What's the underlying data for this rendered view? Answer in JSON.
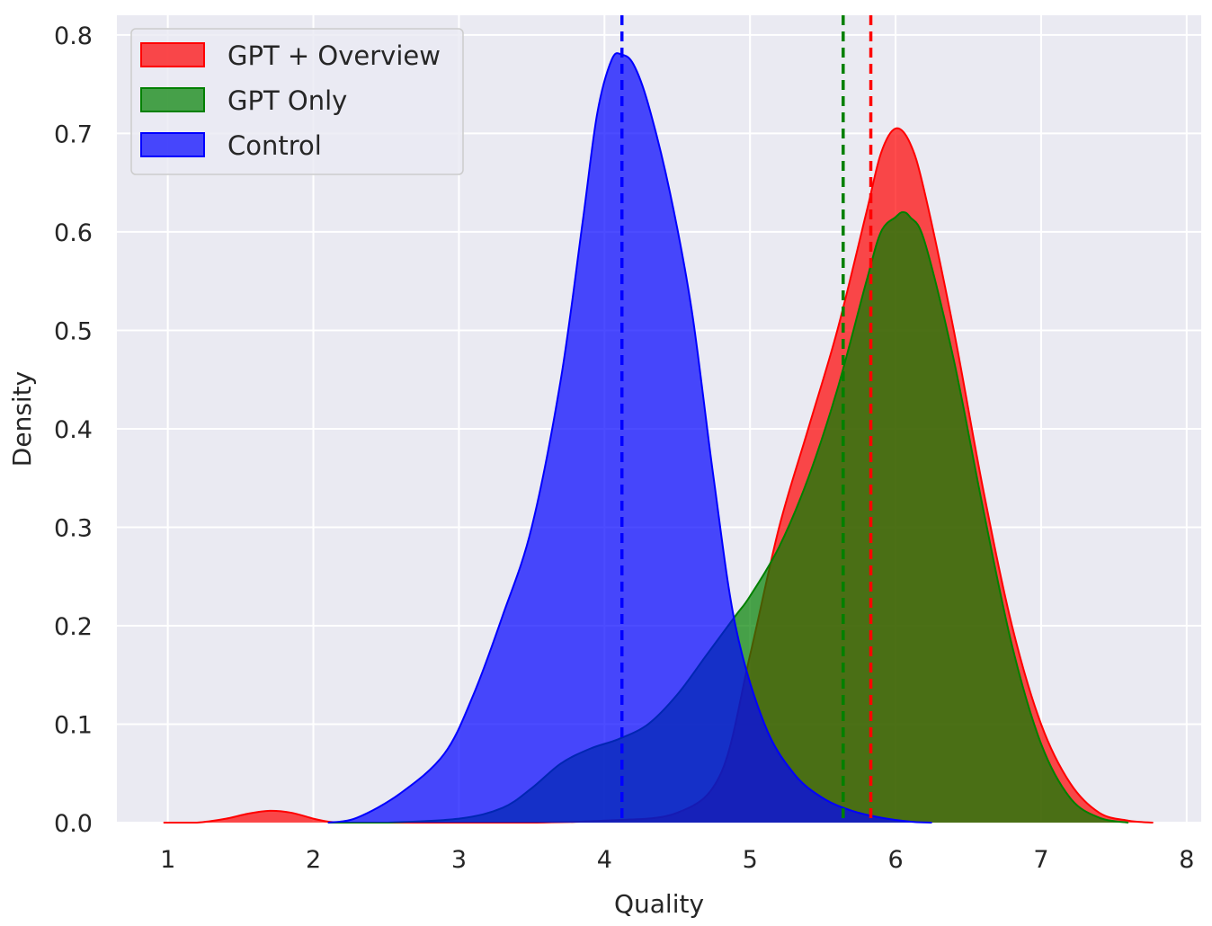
{
  "chart_data": {
    "type": "area",
    "xlabel": "Quality",
    "ylabel": "Density",
    "xlim": [
      0.65,
      8.1
    ],
    "ylim": [
      0,
      0.82
    ],
    "xticks": [
      1,
      2,
      3,
      4,
      5,
      6,
      7,
      8
    ],
    "yticks": [
      0.0,
      0.1,
      0.2,
      0.3,
      0.4,
      0.5,
      0.6,
      0.7,
      0.8
    ],
    "xtick_labels": [
      "1",
      "2",
      "3",
      "4",
      "5",
      "6",
      "7",
      "8"
    ],
    "ytick_labels": [
      "0.0",
      "0.1",
      "0.2",
      "0.3",
      "0.4",
      "0.5",
      "0.6",
      "0.7",
      "0.8"
    ],
    "grid": true,
    "legend_position": "top-left",
    "series": [
      {
        "name": "GPT + Overview",
        "color": "#ff0000",
        "mean": 5.83,
        "x": [
          0.97,
          1.2,
          1.4,
          1.55,
          1.7,
          1.85,
          2.0,
          2.1,
          2.2,
          2.5,
          3.0,
          3.5,
          4.0,
          4.5,
          4.8,
          5.0,
          5.2,
          5.4,
          5.6,
          5.8,
          5.9,
          6.0,
          6.1,
          6.2,
          6.4,
          6.6,
          6.8,
          7.0,
          7.2,
          7.4,
          7.6,
          7.77
        ],
        "y": [
          0.0,
          0.0,
          0.004,
          0.009,
          0.012,
          0.01,
          0.004,
          0.001,
          0.0,
          0.0,
          0.0,
          0.0,
          0.002,
          0.01,
          0.05,
          0.17,
          0.3,
          0.4,
          0.5,
          0.62,
          0.68,
          0.705,
          0.69,
          0.64,
          0.5,
          0.34,
          0.2,
          0.1,
          0.04,
          0.01,
          0.002,
          0.0
        ]
      },
      {
        "name": "GPT Only",
        "color": "#008000",
        "mean": 5.64,
        "x": [
          2.1,
          2.5,
          3.0,
          3.3,
          3.5,
          3.7,
          3.9,
          4.1,
          4.3,
          4.5,
          4.7,
          4.9,
          5.0,
          5.2,
          5.4,
          5.6,
          5.8,
          5.9,
          6.0,
          6.05,
          6.1,
          6.2,
          6.4,
          6.6,
          6.8,
          7.0,
          7.2,
          7.4,
          7.6
        ],
        "y": [
          0.0,
          0.0,
          0.004,
          0.015,
          0.035,
          0.06,
          0.075,
          0.085,
          0.1,
          0.13,
          0.17,
          0.21,
          0.23,
          0.28,
          0.35,
          0.44,
          0.55,
          0.6,
          0.615,
          0.62,
          0.615,
          0.59,
          0.47,
          0.32,
          0.18,
          0.08,
          0.025,
          0.005,
          0.0
        ]
      },
      {
        "name": "Control",
        "color": "#0000ff",
        "mean": 4.12,
        "x": [
          2.1,
          2.3,
          2.6,
          2.9,
          3.1,
          3.3,
          3.5,
          3.7,
          3.85,
          3.95,
          4.05,
          4.12,
          4.2,
          4.3,
          4.45,
          4.6,
          4.75,
          4.9,
          5.1,
          5.3,
          5.5,
          5.7,
          5.9,
          6.1,
          6.25
        ],
        "y": [
          0.0,
          0.005,
          0.03,
          0.07,
          0.13,
          0.21,
          0.3,
          0.45,
          0.61,
          0.72,
          0.775,
          0.78,
          0.77,
          0.73,
          0.64,
          0.52,
          0.35,
          0.2,
          0.1,
          0.05,
          0.025,
          0.012,
          0.005,
          0.001,
          0.0
        ]
      }
    ]
  }
}
